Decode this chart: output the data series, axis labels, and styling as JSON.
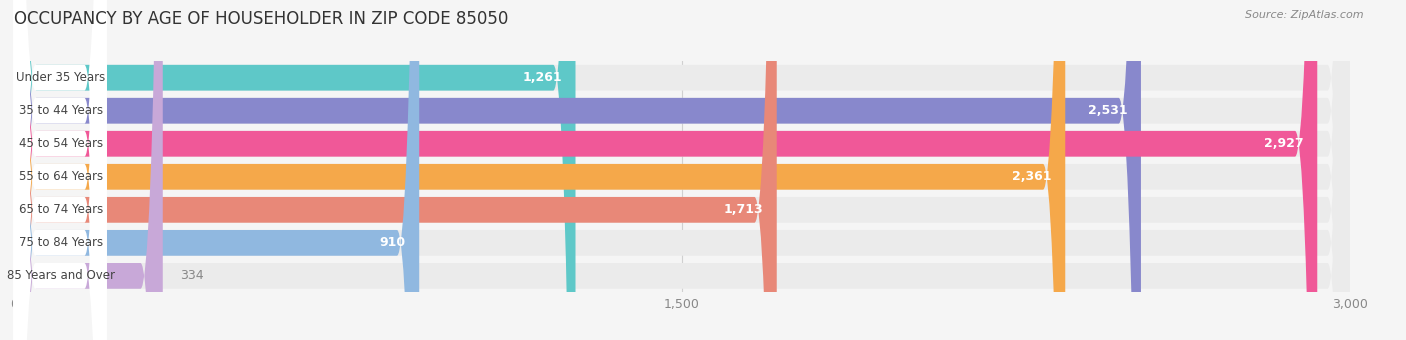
{
  "title": "OCCUPANCY BY AGE OF HOUSEHOLDER IN ZIP CODE 85050",
  "source": "Source: ZipAtlas.com",
  "categories": [
    "Under 35 Years",
    "35 to 44 Years",
    "45 to 54 Years",
    "55 to 64 Years",
    "65 to 74 Years",
    "75 to 84 Years",
    "85 Years and Over"
  ],
  "values": [
    1261,
    2531,
    2927,
    2361,
    1713,
    910,
    334
  ],
  "bar_colors": [
    "#5ec8c8",
    "#8888cc",
    "#f05898",
    "#f5a84a",
    "#e88878",
    "#90b8e0",
    "#c8a8d8"
  ],
  "bar_bg_colors": [
    "#ebebeb",
    "#ebebeb",
    "#ebebeb",
    "#ebebeb",
    "#ebebeb",
    "#ebebeb",
    "#ebebeb"
  ],
  "label_bg_color": "#ffffff",
  "xlim": [
    0,
    3000
  ],
  "xticks": [
    0,
    1500,
    3000
  ],
  "title_fontsize": 12,
  "bar_height": 0.78,
  "background_color": "#f5f5f5",
  "grid_color": "#d0d0d0",
  "value_inside_color": "#ffffff",
  "value_outside_color": "#888888",
  "label_text_color": "#444444"
}
